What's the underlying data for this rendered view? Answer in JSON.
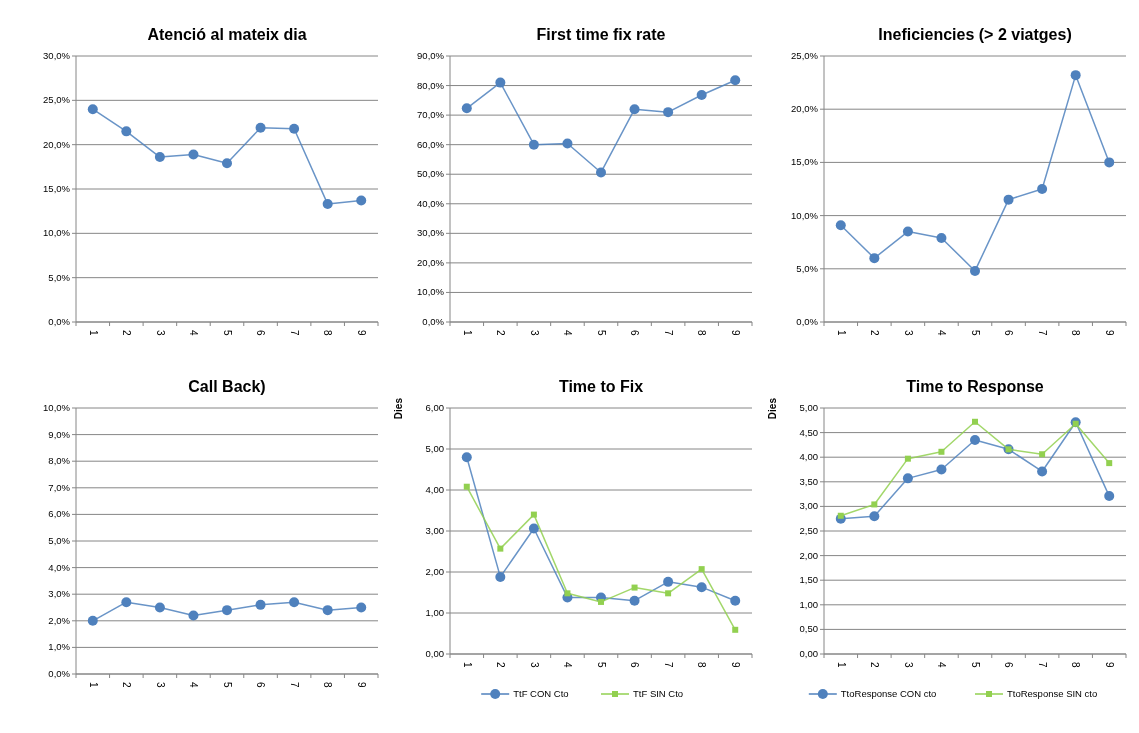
{
  "chart_data": [
    {
      "type": "line",
      "title": "Atenció al mateix dia",
      "categories": [
        "1",
        "2",
        "3",
        "4",
        "5",
        "6",
        "7",
        "8",
        "9"
      ],
      "series": [
        {
          "color": "#4f81bd",
          "values": [
            24.0,
            21.5,
            18.6,
            18.9,
            17.9,
            21.9,
            21.8,
            13.3,
            13.7
          ]
        }
      ],
      "ylim": [
        0,
        30
      ],
      "yticks": [
        {
          "value": 0,
          "label": "0,0%"
        },
        {
          "value": 5,
          "label": "5,0%"
        },
        {
          "value": 10,
          "label": "10,0%"
        },
        {
          "value": 15,
          "label": "15,0%"
        },
        {
          "value": 20,
          "label": "20,0%"
        },
        {
          "value": 25,
          "label": "25,0%"
        },
        {
          "value": 30,
          "label": "30,0%"
        }
      ],
      "grid": "y",
      "marker": "circle",
      "legend": false
    },
    {
      "type": "line",
      "title": "First time fix rate",
      "categories": [
        "1",
        "2",
        "3",
        "4",
        "5",
        "6",
        "7",
        "8",
        "9"
      ],
      "series": [
        {
          "color": "#4f81bd",
          "values": [
            72.3,
            81.0,
            60.0,
            60.4,
            50.6,
            72.0,
            71.0,
            76.8,
            81.8
          ]
        }
      ],
      "ylim": [
        0,
        90
      ],
      "yticks": [
        {
          "value": 0,
          "label": "0,0%"
        },
        {
          "value": 10,
          "label": "10,0%"
        },
        {
          "value": 20,
          "label": "20,0%"
        },
        {
          "value": 30,
          "label": "30,0%"
        },
        {
          "value": 40,
          "label": "40,0%"
        },
        {
          "value": 50,
          "label": "50,0%"
        },
        {
          "value": 60,
          "label": "60,0%"
        },
        {
          "value": 70,
          "label": "70,0%"
        },
        {
          "value": 80,
          "label": "80,0%"
        },
        {
          "value": 90,
          "label": "90,0%"
        }
      ],
      "grid": "y",
      "marker": "circle",
      "legend": false
    },
    {
      "type": "line",
      "title": "Ineficiencies (> 2 viatges)",
      "categories": [
        "1",
        "2",
        "3",
        "4",
        "5",
        "6",
        "7",
        "8",
        "9"
      ],
      "series": [
        {
          "color": "#4f81bd",
          "values": [
            9.1,
            6.0,
            8.5,
            7.9,
            4.8,
            11.5,
            12.5,
            23.2,
            15.0
          ]
        }
      ],
      "ylim": [
        0,
        25
      ],
      "yticks": [
        {
          "value": 0,
          "label": "0,0%"
        },
        {
          "value": 5,
          "label": "5,0%"
        },
        {
          "value": 10,
          "label": "10,0%"
        },
        {
          "value": 15,
          "label": "15,0%"
        },
        {
          "value": 20,
          "label": "20,0%"
        },
        {
          "value": 25,
          "label": "25,0%"
        }
      ],
      "grid": "y",
      "marker": "circle",
      "legend": false
    },
    {
      "type": "line",
      "title": "Call Back)",
      "categories": [
        "1",
        "2",
        "3",
        "4",
        "5",
        "6",
        "7",
        "8",
        "9"
      ],
      "series": [
        {
          "color": "#4f81bd",
          "values": [
            2.0,
            2.7,
            2.5,
            2.2,
            2.4,
            2.6,
            2.7,
            2.4,
            2.5
          ]
        }
      ],
      "ylim": [
        0,
        10
      ],
      "yticks": [
        {
          "value": 0,
          "label": "0,0%"
        },
        {
          "value": 1,
          "label": "1,0%"
        },
        {
          "value": 2,
          "label": "2,0%"
        },
        {
          "value": 3,
          "label": "3,0%"
        },
        {
          "value": 4,
          "label": "4,0%"
        },
        {
          "value": 5,
          "label": "5,0%"
        },
        {
          "value": 6,
          "label": "6,0%"
        },
        {
          "value": 7,
          "label": "7,0%"
        },
        {
          "value": 8,
          "label": "8,0%"
        },
        {
          "value": 9,
          "label": "9,0%"
        },
        {
          "value": 10,
          "label": "10,0%"
        }
      ],
      "grid": "y",
      "marker": "circle",
      "legend": false
    },
    {
      "type": "line",
      "title": "Time to Fix",
      "ylabel": "Dies",
      "categories": [
        "1",
        "2",
        "3",
        "4",
        "5",
        "6",
        "7",
        "8",
        "9"
      ],
      "series": [
        {
          "name": "TtF CON Cto",
          "color": "#4f81bd",
          "marker": "circle",
          "values": [
            4.8,
            1.88,
            3.06,
            1.38,
            1.38,
            1.3,
            1.76,
            1.63,
            1.3
          ]
        },
        {
          "name": "TtF SIN Cto",
          "color": "#92d050",
          "marker": "square",
          "values": [
            4.08,
            2.57,
            3.4,
            1.48,
            1.27,
            1.62,
            1.48,
            2.07,
            0.59
          ]
        }
      ],
      "ylim": [
        0,
        6
      ],
      "yticks": [
        {
          "value": 0,
          "label": "0,00"
        },
        {
          "value": 1,
          "label": "1,00"
        },
        {
          "value": 2,
          "label": "2,00"
        },
        {
          "value": 3,
          "label": "3,00"
        },
        {
          "value": 4,
          "label": "4,00"
        },
        {
          "value": 5,
          "label": "5,00"
        },
        {
          "value": 6,
          "label": "6,00"
        }
      ],
      "grid": "y",
      "legend": "bottom"
    },
    {
      "type": "line",
      "title": "Time to Response",
      "ylabel": "Dies",
      "categories": [
        "1",
        "2",
        "3",
        "4",
        "5",
        "6",
        "7",
        "8",
        "9"
      ],
      "series": [
        {
          "name": "TtoResponse CON cto",
          "color": "#4f81bd",
          "marker": "circle",
          "values": [
            2.75,
            2.8,
            3.57,
            3.75,
            4.35,
            4.16,
            3.71,
            4.71,
            3.21
          ]
        },
        {
          "name": "TtoResponse SIN cto",
          "color": "#92d050",
          "marker": "square",
          "values": [
            2.81,
            3.04,
            3.97,
            4.11,
            4.72,
            4.16,
            4.06,
            4.68,
            3.88
          ]
        }
      ],
      "ylim": [
        0,
        5
      ],
      "yticks": [
        {
          "value": 0,
          "label": "0,00"
        },
        {
          "value": 0.5,
          "label": "0,50"
        },
        {
          "value": 1,
          "label": "1,00"
        },
        {
          "value": 1.5,
          "label": "1,50"
        },
        {
          "value": 2,
          "label": "2,00"
        },
        {
          "value": 2.5,
          "label": "2,50"
        },
        {
          "value": 3,
          "label": "3,00"
        },
        {
          "value": 3.5,
          "label": "3,50"
        },
        {
          "value": 4,
          "label": "4,00"
        },
        {
          "value": 4.5,
          "label": "4,50"
        },
        {
          "value": 5,
          "label": "5,00"
        }
      ],
      "grid": "y",
      "legend": "bottom"
    }
  ]
}
